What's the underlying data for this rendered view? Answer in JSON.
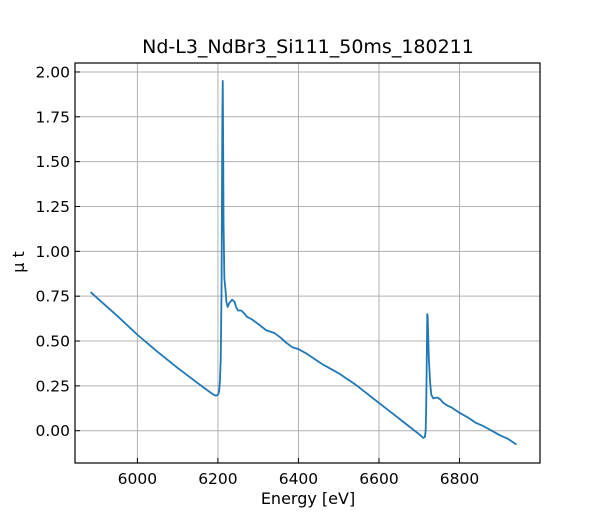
{
  "chart_data": {
    "type": "line",
    "title": "Nd-L3_NdBr3_Si111_50ms_180211",
    "xlabel": "Energy [eV]",
    "ylabel": "μ t",
    "xlim": [
      5845,
      7000
    ],
    "ylim": [
      -0.18,
      2.05
    ],
    "xticks": [
      6000,
      6200,
      6400,
      6600,
      6800
    ],
    "xtick_labels": [
      "6000",
      "6200",
      "6400",
      "6600",
      "6800"
    ],
    "yticks": [
      0.0,
      0.25,
      0.5,
      0.75,
      1.0,
      1.25,
      1.5,
      1.75,
      2.0
    ],
    "ytick_labels": [
      "0.00",
      "0.25",
      "0.50",
      "0.75",
      "1.00",
      "1.25",
      "1.50",
      "1.75",
      "2.00"
    ],
    "grid": true,
    "series": [
      {
        "color": "#1f77b4",
        "points": [
          [
            5885,
            0.77
          ],
          [
            5950,
            0.64
          ],
          [
            6000,
            0.535
          ],
          [
            6050,
            0.44
          ],
          [
            6100,
            0.35
          ],
          [
            6150,
            0.265
          ],
          [
            6180,
            0.215
          ],
          [
            6190,
            0.2
          ],
          [
            6195,
            0.195
          ],
          [
            6200,
            0.2
          ],
          [
            6203,
            0.22
          ],
          [
            6205,
            0.28
          ],
          [
            6207,
            0.4
          ],
          [
            6209,
            0.8
          ],
          [
            6210,
            1.3
          ],
          [
            6211,
            1.75
          ],
          [
            6212,
            1.95
          ],
          [
            6213,
            1.6
          ],
          [
            6214,
            1.15
          ],
          [
            6216,
            0.85
          ],
          [
            6219,
            0.78
          ],
          [
            6221,
            0.72
          ],
          [
            6224,
            0.69
          ],
          [
            6228,
            0.71
          ],
          [
            6235,
            0.73
          ],
          [
            6241,
            0.72
          ],
          [
            6245,
            0.69
          ],
          [
            6250,
            0.67
          ],
          [
            6258,
            0.67
          ],
          [
            6265,
            0.655
          ],
          [
            6272,
            0.635
          ],
          [
            6285,
            0.62
          ],
          [
            6300,
            0.595
          ],
          [
            6320,
            0.56
          ],
          [
            6340,
            0.545
          ],
          [
            6355,
            0.52
          ],
          [
            6370,
            0.49
          ],
          [
            6385,
            0.465
          ],
          [
            6400,
            0.455
          ],
          [
            6420,
            0.43
          ],
          [
            6440,
            0.4
          ],
          [
            6460,
            0.37
          ],
          [
            6480,
            0.345
          ],
          [
            6500,
            0.32
          ],
          [
            6520,
            0.29
          ],
          [
            6540,
            0.26
          ],
          [
            6560,
            0.225
          ],
          [
            6580,
            0.19
          ],
          [
            6600,
            0.155
          ],
          [
            6620,
            0.12
          ],
          [
            6640,
            0.085
          ],
          [
            6660,
            0.05
          ],
          [
            6680,
            0.015
          ],
          [
            6700,
            -0.02
          ],
          [
            6710,
            -0.04
          ],
          [
            6714,
            -0.035
          ],
          [
            6716,
            0.0
          ],
          [
            6717,
            0.09
          ],
          [
            6718,
            0.25
          ],
          [
            6719,
            0.45
          ],
          [
            6720,
            0.65
          ],
          [
            6721,
            0.64
          ],
          [
            6722,
            0.55
          ],
          [
            6724,
            0.4
          ],
          [
            6727,
            0.27
          ],
          [
            6730,
            0.2
          ],
          [
            6735,
            0.18
          ],
          [
            6745,
            0.185
          ],
          [
            6752,
            0.175
          ],
          [
            6760,
            0.155
          ],
          [
            6770,
            0.14
          ],
          [
            6780,
            0.13
          ],
          [
            6790,
            0.115
          ],
          [
            6800,
            0.1
          ],
          [
            6820,
            0.075
          ],
          [
            6840,
            0.045
          ],
          [
            6860,
            0.025
          ],
          [
            6880,
            0.0
          ],
          [
            6900,
            -0.025
          ],
          [
            6920,
            -0.045
          ],
          [
            6940,
            -0.075
          ]
        ]
      }
    ]
  }
}
